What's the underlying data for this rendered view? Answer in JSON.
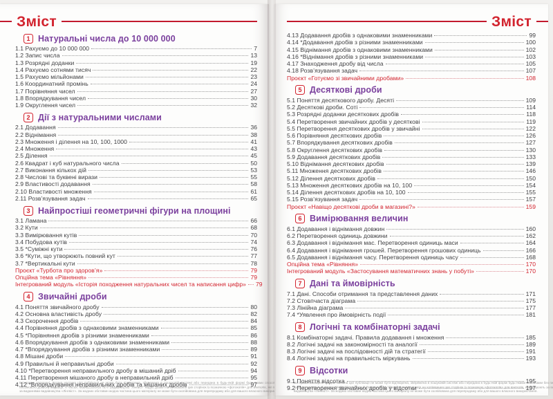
{
  "colors": {
    "accent_red": "#d2232e",
    "rule_red": "#c2192d",
    "section_purple": "#7a3f9d",
    "entry_text": "#3f3f42"
  },
  "fine_print": "Всі права захищені. Жодна частина цієї публікації не може бути відтворена, збережена в пошуковій системі або передана в будь-якій формі будь-якими способами без письмового дозволу видавця. © Vector. Maths2Science та © Видавництво \"Лінгвіст\" надає дозвіл на копіювання цих сторінок із позначкою «фотокопія» для вчителів, які працюють за виданнями видавництва «Лінгвіст». За жодних обставин жодна частина цього матеріалу не може бути скопійована для перепродажу або для вашого власного використання.",
  "pages": [
    {
      "header": "Зміст",
      "sections": [
        {
          "number": "1",
          "title": "Натуральні числа до 10 000 000",
          "entries": [
            {
              "label": "1.1 Рахуємо до 10 000 000",
              "page": "7"
            },
            {
              "label": "1.2 Запис числа",
              "page": "13"
            },
            {
              "label": "1.3 Розрядні доданки",
              "page": "19"
            },
            {
              "label": "1.4 Рахуємо сотнями тисяч",
              "page": "22"
            },
            {
              "label": "1.5 Рахуємо мільйонами",
              "page": "23"
            },
            {
              "label": "1.6 Координатний промінь",
              "page": "24"
            },
            {
              "label": "1.7 Порівняння чисел",
              "page": "27"
            },
            {
              "label": "1.8 Впорядкування чисел",
              "page": "30"
            },
            {
              "label": "1.9 Округлення чисел",
              "page": "32"
            }
          ]
        },
        {
          "number": "2",
          "title": "Дії з натуральними числами",
          "entries": [
            {
              "label": "2.1 Додавання",
              "page": "36"
            },
            {
              "label": "2.2 Віднімання",
              "page": "38"
            },
            {
              "label": "2.3 Множення і ділення на 10, 100, 1000",
              "page": "41"
            },
            {
              "label": "2.4 Множення",
              "page": "43"
            },
            {
              "label": "2.5 Ділення",
              "page": "45"
            },
            {
              "label": "2.6 Квадрат і куб натурального числа",
              "page": "50"
            },
            {
              "label": "2.7 Виконання кількох дій",
              "page": "53"
            },
            {
              "label": "2.8 Числові та буквені вирази",
              "page": "55"
            },
            {
              "label": "2.9 Властивості додавання",
              "page": "58"
            },
            {
              "label": "2.10 Властивості множення",
              "page": "61"
            },
            {
              "label": "2.11 Розв’язування задач",
              "page": "65"
            }
          ]
        },
        {
          "number": "3",
          "title": "Найпростіші геометричні фігури на площині",
          "entries": [
            {
              "label": "3.1 Ламана",
              "page": "66"
            },
            {
              "label": "3.2 Кути",
              "page": "68"
            },
            {
              "label": "3.3 Вимірювання кутів",
              "page": "70"
            },
            {
              "label": "3.4 Побудова кутів",
              "page": "74"
            },
            {
              "label": "3.5 *Суміжні кути",
              "page": "76"
            },
            {
              "label": "3.6 *Кути, що утворюють повний кут",
              "page": "77"
            },
            {
              "label": "3.7 *Вертикальні кути",
              "page": "78"
            },
            {
              "label": "Проєкт «Турбота про здоров’я»",
              "page": "79",
              "accent": true
            },
            {
              "label": "Опційна тема «Рівняння»",
              "page": "79",
              "accent": true
            },
            {
              "label": "Інтегрований модуль «Історія походження натуральних чисел та написання цифр»",
              "page": "79",
              "accent": true
            }
          ]
        },
        {
          "number": "4",
          "title": "Звичайні дроби",
          "entries": [
            {
              "label": "4.1 Поняття звичайного дробу",
              "page": "80"
            },
            {
              "label": "4.2 Основна властивість дробу",
              "page": "82"
            },
            {
              "label": "4.3 Скорочення дробів",
              "page": "84"
            },
            {
              "label": "4.4 Порівняння дробів з однаковими знаменниками",
              "page": "85"
            },
            {
              "label": "4.5 *Порівняння дробів з різними знаменниками",
              "page": "86"
            },
            {
              "label": "4.6 Впорядкування дробів з однаковими знаменниками",
              "page": "88"
            },
            {
              "label": "4.7 *Впорядкування дробів з різними знаменниками",
              "page": "89"
            },
            {
              "label": "4.8 Мішані дроби",
              "page": "91"
            },
            {
              "label": "4.9 Правильні й неправильні дроби",
              "page": "92"
            },
            {
              "label": "4.10 *Перетворення неправильного дробу в мішаний дріб",
              "page": "94"
            },
            {
              "label": "4.11 Перетворення мішаного дробу в неправильний дріб",
              "page": "95"
            },
            {
              "label": "4.12 *Впорядкування неправильних дробів та мішаних дробів",
              "page": "97"
            }
          ]
        }
      ]
    },
    {
      "header": "Зміст",
      "sections": [
        {
          "number": null,
          "title": null,
          "entries": [
            {
              "label": "4.13 Додавання дробів з однаковими знаменниками",
              "page": "99"
            },
            {
              "label": "4.14 *Додавання дробів з різними знаменниками",
              "page": "100"
            },
            {
              "label": "4.15 Віднімання дробів з однаковими знаменниками",
              "page": "102"
            },
            {
              "label": "4.16 *Віднімання дробів з різними знаменниками",
              "page": "103"
            },
            {
              "label": "4.17 Знаходження дробу від числа",
              "page": "105"
            },
            {
              "label": "4.18 Розв’язування задач",
              "page": "107"
            },
            {
              "label": "Проєкт «Готуємо зі звичайними дробами»",
              "page": "108",
              "accent": true
            }
          ]
        },
        {
          "number": "5",
          "title": "Десяткові дроби",
          "entries": [
            {
              "label": "5.1 Поняття десяткового дробу. Десяті",
              "page": "109"
            },
            {
              "label": "5.2 Десяткові дроби. Соті",
              "page": "114"
            },
            {
              "label": "5.3 Розрядні доданки десяткових дробів",
              "page": "118"
            },
            {
              "label": "5.4 Перетворення звичайних дробів у десяткові",
              "page": "119"
            },
            {
              "label": "5.5 Перетворення десяткових дробів у звичайні",
              "page": "122"
            },
            {
              "label": "5.6 Порівняння десяткових дробів",
              "page": "126"
            },
            {
              "label": "5.7 Впорядкування десяткових дробів",
              "page": "127"
            },
            {
              "label": "5.8 Округлення десяткових дробів",
              "page": "130"
            },
            {
              "label": "5.9 Додавання десяткових дробів",
              "page": "133"
            },
            {
              "label": "5.10 Віднімання десяткових дробів",
              "page": "139"
            },
            {
              "label": "5.11 Множення десяткових дробів",
              "page": "146"
            },
            {
              "label": "5.12 Ділення десяткових дробів",
              "page": "150"
            },
            {
              "label": "5.13 Множення десяткових дробів на 10, 100",
              "page": "154"
            },
            {
              "label": "5.14 Ділення десяткових дробів на 10, 100",
              "page": "155"
            },
            {
              "label": "5.15 Розв’язування задач",
              "page": "157"
            },
            {
              "label": "Проєкт «Навіщо десяткові дроби в магазині?»",
              "page": "159",
              "accent": true
            }
          ]
        },
        {
          "number": "6",
          "title": "Вимірювання величин",
          "entries": [
            {
              "label": "6.1 Додавання і віднімання довжин",
              "page": "160"
            },
            {
              "label": "6.2 Перетворення одиниць довжини",
              "page": "162"
            },
            {
              "label": "6.3 Додавання і віднімання мас. Перетворення одиниць маси",
              "page": "164"
            },
            {
              "label": "6.4 Додавання і віднімання грошей. Перетворення грошових одиниць",
              "page": "166"
            },
            {
              "label": "6.5 Додавання і віднімання часу. Перетворення одиниць часу",
              "page": "168"
            },
            {
              "label": "Опційна тема «Рівняння»",
              "page": "170",
              "accent": true
            },
            {
              "label": "Інтегрований модуль «Застосування математичних знань у побуті»",
              "page": "170",
              "accent": true
            }
          ]
        },
        {
          "number": "7",
          "title": "Дані та ймовірність",
          "entries": [
            {
              "label": "7.1 Дані. Способи отримання та представлення даних",
              "page": "171"
            },
            {
              "label": "7.2 Стовпчаста діаграма",
              "page": "175"
            },
            {
              "label": "7.3 Лінійна діаграма",
              "page": "177"
            },
            {
              "label": "7.4 *Уявлення про ймовірність події",
              "page": "181"
            }
          ]
        },
        {
          "number": "8",
          "title": "Логічні та комбінаторні задачі",
          "entries": [
            {
              "label": "8.1 Комбінаторні задачі. Правила додавання і множення",
              "page": "185"
            },
            {
              "label": "8.2 Логічні задачі на закономірності та аналогії",
              "page": "189"
            },
            {
              "label": "8.3 Логічні задачі на послідовності дій та стратегії",
              "page": "191"
            },
            {
              "label": "8.4 Логічні задачі на правильність міркувань",
              "page": "193"
            }
          ]
        },
        {
          "number": "9",
          "title": "Відсотки",
          "entries": [
            {
              "label": "9.1 Поняття відсотка",
              "page": "195"
            },
            {
              "label": "9.2 Перетворення звичайних дробів у відсотки",
              "page": "197"
            }
          ]
        }
      ]
    }
  ]
}
